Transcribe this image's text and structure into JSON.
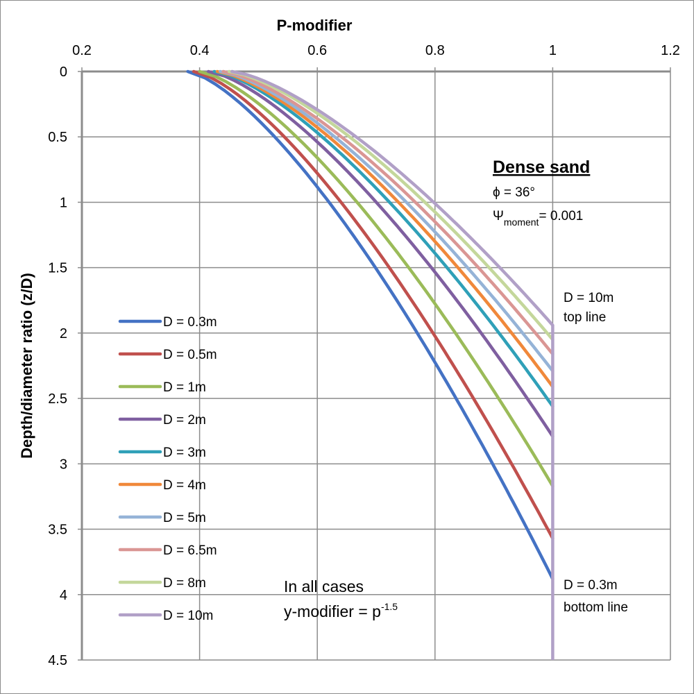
{
  "chart_data": {
    "type": "line",
    "xlabel": "P-modifier",
    "ylabel": "Depth/diameter ratio (z/D)",
    "xlim": [
      0.2,
      1.2
    ],
    "ylim": [
      0,
      4.5
    ],
    "y_inverted": true,
    "x_axis_position": "top",
    "x_ticks": [
      "0.2",
      "0.4",
      "0.6",
      "0.8",
      "1",
      "1.2"
    ],
    "x_tick_values": [
      0.2,
      0.4,
      0.6,
      0.8,
      1.0,
      1.2
    ],
    "y_ticks": [
      "0",
      "0.5",
      "1",
      "1.5",
      "2",
      "2.5",
      "3",
      "3.5",
      "4",
      "4.5"
    ],
    "y_tick_values": [
      0,
      0.5,
      1,
      1.5,
      2,
      2.5,
      3,
      3.5,
      4,
      4.5
    ],
    "grid": true,
    "legend_position": "left",
    "series": [
      {
        "name": "D = 0.3m",
        "color": "#4472C4",
        "p0": 0.38,
        "z_end": 3.88
      },
      {
        "name": "D = 0.5m",
        "color": "#C0504D",
        "p0": 0.39,
        "z_end": 3.57
      },
      {
        "name": "D = 1m",
        "color": "#9BBB59",
        "p0": 0.4,
        "z_end": 3.17
      },
      {
        "name": "D = 2m",
        "color": "#7F5FA0",
        "p0": 0.415,
        "z_end": 2.79
      },
      {
        "name": "D = 3m",
        "color": "#2FA0B8",
        "p0": 0.425,
        "z_end": 2.56
      },
      {
        "name": "D = 4m",
        "color": "#F0883A",
        "p0": 0.43,
        "z_end": 2.41
      },
      {
        "name": "D = 5m",
        "color": "#95B3D7",
        "p0": 0.435,
        "z_end": 2.29
      },
      {
        "name": "D = 6.5m",
        "color": "#DA9694",
        "p0": 0.44,
        "z_end": 2.16
      },
      {
        "name": "D = 8m",
        "color": "#C4D79B",
        "p0": 0.45,
        "z_end": 2.05
      },
      {
        "name": "D = 10m",
        "color": "#B1A0C7",
        "p0": 0.455,
        "z_end": 1.94
      }
    ],
    "vertical_line": {
      "x": 1.0,
      "y_from": 1.94,
      "y_to": 4.5
    },
    "annotations": {
      "title": "Dense sand",
      "phi": "ϕ = 36°",
      "psi_main": "Ψ",
      "psi_sub": "moment",
      "psi_value": "= 0.001",
      "top_line_1": "D = 10m",
      "top_line_2": "top line",
      "bottom_line_1": "D = 0.3m",
      "bottom_line_2": "bottom line",
      "all_cases_1": "In all cases",
      "all_cases_2": "y-modifier = p",
      "all_cases_exp": "-1.5"
    }
  }
}
